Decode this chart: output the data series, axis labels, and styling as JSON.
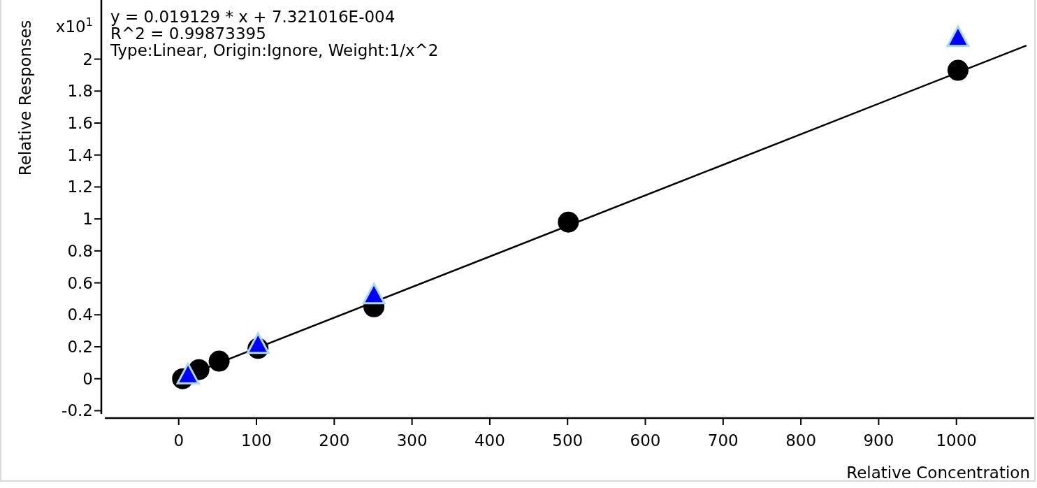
{
  "chart_data": {
    "type": "scatter",
    "xlabel": "Relative Concentration",
    "ylabel": "Relative Responses",
    "xlim": [
      -95,
      1100
    ],
    "ylim": [
      -0.22,
      2.37
    ],
    "xticks": [
      0,
      100,
      200,
      300,
      400,
      500,
      600,
      700,
      800,
      900,
      1000
    ],
    "yticks": [
      -0.2,
      0,
      0.2,
      0.4,
      0.6,
      0.8,
      1,
      1.2,
      1.4,
      1.6,
      1.8,
      2
    ],
    "grid": false,
    "annotations": [
      "x10$^{1}$",
      "y = 0.019129 * x  + 7.321016E-004",
      "R^2 = 0.99873395",
      "Type:Linear, Origin:Ignore, Weight:1/x^2"
    ],
    "series": [
      {
        "type": "line",
        "color": "#000000",
        "x": [
          0,
          1090
        ],
        "values": [
          0,
          2.085
        ],
        "marker": "none"
      },
      {
        "color": "#000000",
        "marker": "circle",
        "x": [
          5,
          26,
          52,
          102,
          251,
          501,
          1002
        ],
        "values": [
          0.0,
          0.057,
          0.11,
          0.19,
          0.45,
          0.98,
          1.93
        ]
      },
      {
        "color": "#0000ff",
        "marker": "triangle",
        "x": [
          12,
          102,
          251,
          1002
        ],
        "values": [
          0.02,
          0.21,
          0.52,
          2.13
        ]
      }
    ]
  }
}
